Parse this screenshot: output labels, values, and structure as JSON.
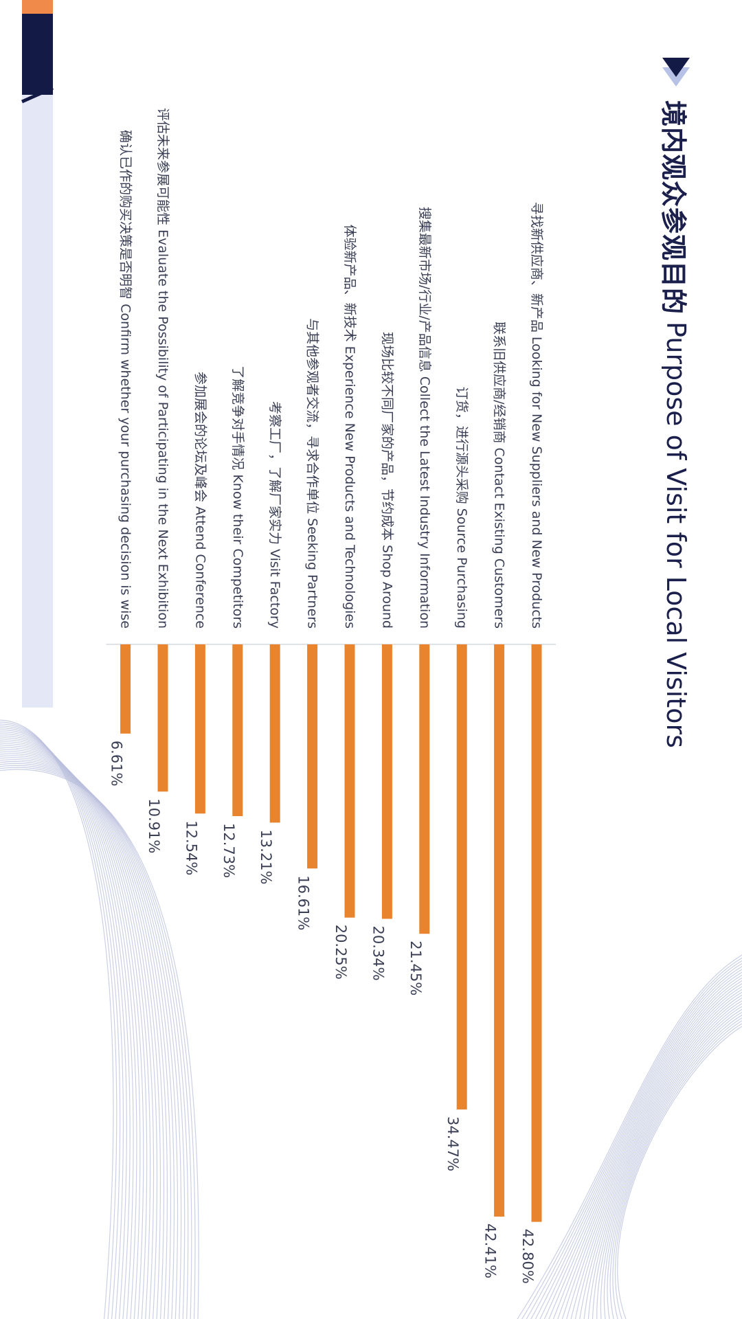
{
  "title": {
    "cn": "境内观众参观目的",
    "en": "Purpose of Visit for Local Visitors"
  },
  "colors": {
    "bar": "#e8832e",
    "navy": "#141a46",
    "accent": "#f08a4b",
    "line_deco": "#b9bfdc",
    "text": "#3b3f55"
  },
  "icons": {
    "title": "play-triangle-icon"
  },
  "chart_data": {
    "type": "bar",
    "orientation": "horizontal",
    "title": "境内观众参观目的 Purpose of Visit for Local Visitors",
    "xlabel": "",
    "ylabel": "",
    "xlim": [
      0,
      50
    ],
    "grid": false,
    "categories": [
      "寻找新供应商、新产品 Looking for New Suppliers and New Products",
      "联系旧供应商/经销商 Contact Existing Customers",
      "订货，进行源头采购 Source Purchasing",
      "搜集最新市场/行业/产品信息 Collect the Latest Industry Information",
      "现场比较不同厂家的产品，节约成本 Shop Around",
      "体验新产品、新技术 Experience New Products and Technologies",
      "与其他参观者交流，寻求合作单位 Seeking Partners",
      "考察工厂，了解厂家实力 Visit Factory",
      "了解竞争对手情况 Know their Competitors",
      "参加展会的论坛及峰会 Attend Conference",
      "评估未来参展可能性 Evaluate the Possibility of Participating in the Next Exhibition",
      "确认已作的购买决策是否明智 Confirm whether your purchasing decision is wise"
    ],
    "values": [
      42.8,
      42.41,
      34.47,
      21.45,
      20.34,
      20.25,
      16.61,
      13.21,
      12.73,
      12.54,
      10.91,
      6.61
    ],
    "value_labels": [
      "42.80%",
      "42.41%",
      "34.47%",
      "21.45%",
      "20.34%",
      "20.25%",
      "16.61%",
      "13.21%",
      "12.73%",
      "12.54%",
      "10.91%",
      "6.61%"
    ]
  }
}
